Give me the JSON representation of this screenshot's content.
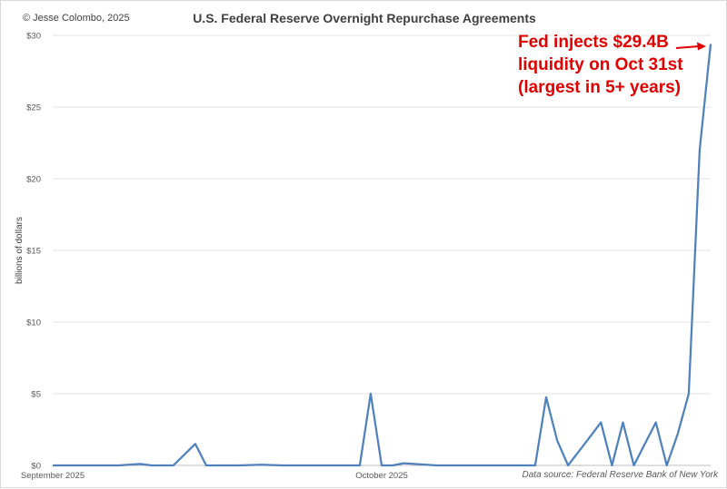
{
  "header": {
    "copyright": "© Jesse Colombo, 2025"
  },
  "footer": {
    "source": "Data source: Federal Reserve Bank of New York"
  },
  "annotation": {
    "lines": [
      "Fed injects $29.4B",
      "liquidity on Oct 31st",
      "(largest in 5+ years)"
    ],
    "color": "#e00000"
  },
  "chart_data": {
    "type": "line",
    "title": "U.S. Federal Reserve Overnight Repurchase Agreements",
    "xlabel": "",
    "ylabel": "billions of dollars",
    "ylim": [
      0,
      30
    ],
    "yticks": [
      0,
      5,
      10,
      15,
      20,
      25,
      30
    ],
    "ytick_labels": [
      "$0",
      "$5",
      "$10",
      "$15",
      "$20",
      "$25",
      "$30"
    ],
    "x_range_days": [
      0,
      60
    ],
    "x_tick_labels": [
      {
        "day": 0,
        "label": "September 2025"
      },
      {
        "day": 30,
        "label": "October 2025"
      }
    ],
    "grid": true,
    "line_color": "#4f81bd",
    "series": [
      {
        "name": "Overnight Repurchase Agreements",
        "x": [
          0,
          2,
          4,
          6,
          8,
          9,
          11,
          13,
          14,
          15,
          17,
          19,
          21,
          22,
          24,
          26,
          28,
          29,
          30,
          31,
          32,
          33,
          35,
          37,
          38,
          40,
          42,
          44,
          45,
          46,
          47,
          49,
          50,
          51,
          52,
          53,
          55,
          56,
          57,
          58,
          59,
          60
        ],
        "values": [
          0,
          0,
          0,
          0,
          0.1,
          0,
          0,
          1.5,
          0,
          0,
          0,
          0.05,
          0,
          0,
          0,
          0,
          0,
          5.0,
          0,
          0,
          0.15,
          0.1,
          0,
          0,
          0,
          0,
          0,
          0,
          4.75,
          1.75,
          0,
          2.0,
          3.0,
          0,
          3.0,
          0,
          3.0,
          0,
          2.2,
          5.0,
          22.0,
          29.4
        ]
      }
    ]
  }
}
